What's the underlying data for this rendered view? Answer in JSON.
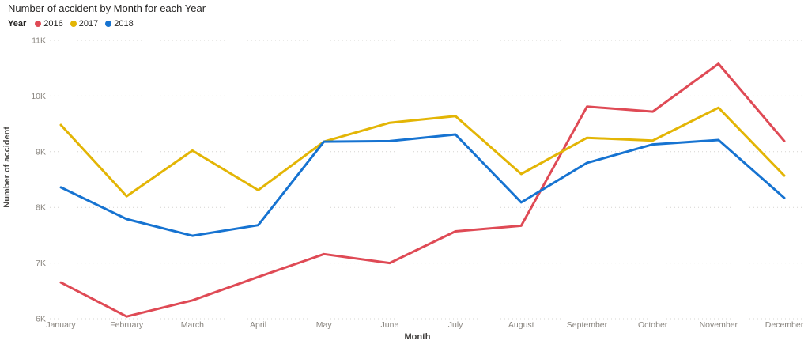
{
  "chart_data": {
    "type": "line",
    "title": "Number of accident by Month for each Year",
    "legend_title": "Year",
    "legend_position": "top-left",
    "xlabel": "Month",
    "ylabel": "Number of accident",
    "categories": [
      "January",
      "February",
      "March",
      "April",
      "May",
      "June",
      "July",
      "August",
      "September",
      "October",
      "November",
      "December"
    ],
    "ylim": [
      6000,
      11000
    ],
    "ytick_interval": 1000,
    "ytick_labels": [
      "6K",
      "7K",
      "8K",
      "9K",
      "10K",
      "11K"
    ],
    "grid": "horizontal-dotted",
    "gridline_color": "#d6d4d0",
    "series": [
      {
        "name": "2016",
        "color": "#df4a55",
        "values": [
          6650,
          6040,
          6330,
          6750,
          7160,
          7000,
          7570,
          7670,
          9810,
          9720,
          10580,
          9190
        ]
      },
      {
        "name": "2017",
        "color": "#e3b505",
        "values": [
          9480,
          8200,
          9020,
          8310,
          9180,
          9520,
          9640,
          8600,
          9250,
          9200,
          9790,
          8570
        ]
      },
      {
        "name": "2018",
        "color": "#1673d1",
        "values": [
          8360,
          7790,
          7490,
          7680,
          9180,
          9190,
          9310,
          8090,
          8800,
          9130,
          9210,
          8170
        ]
      }
    ]
  }
}
